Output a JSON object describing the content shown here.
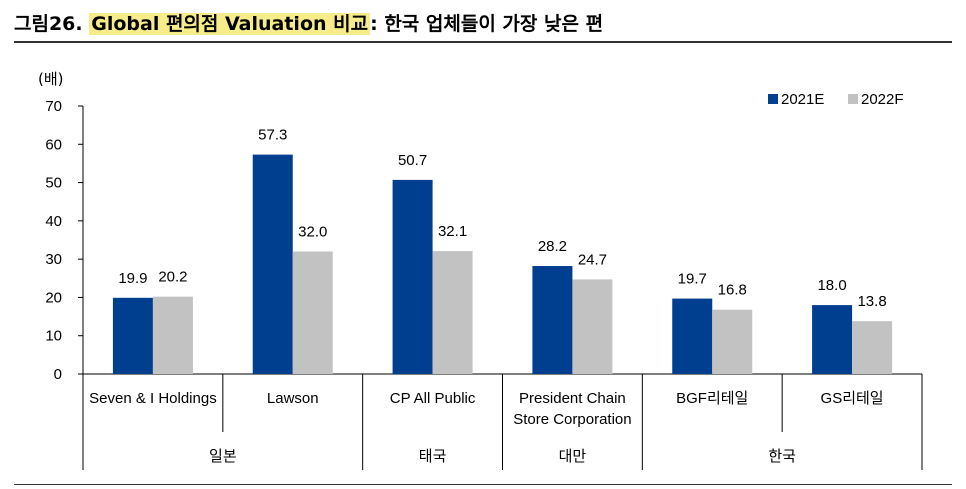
{
  "header": {
    "prefix": "그림26. ",
    "highlight": "Global 편의점 Valuation 비교",
    "suffix": ": 한국 업체들이 가장 낮은 편"
  },
  "chart_data": {
    "type": "bar",
    "unit_label": "(배)",
    "categories": [
      [
        "Seven & I Holdings"
      ],
      [
        "Lawson"
      ],
      [
        "CP All Public"
      ],
      [
        "President Chain",
        "Store Corporation"
      ],
      [
        "BGF리테일"
      ],
      [
        "GS리테일"
      ]
    ],
    "groups": [
      {
        "label": "일본",
        "start": 0,
        "end": 1
      },
      {
        "label": "태국",
        "start": 2,
        "end": 2
      },
      {
        "label": "대만",
        "start": 3,
        "end": 3
      },
      {
        "label": "한국",
        "start": 4,
        "end": 5
      }
    ],
    "series": [
      {
        "name": "2021E",
        "color": "#003f8f",
        "values": [
          19.9,
          57.3,
          50.7,
          28.2,
          19.7,
          18.0
        ]
      },
      {
        "name": "2022F",
        "color": "#c2c2c2",
        "values": [
          20.2,
          32.0,
          32.1,
          24.7,
          16.8,
          13.8
        ]
      }
    ],
    "ylim": [
      0,
      70
    ],
    "yticks": [
      0,
      10,
      20,
      30,
      40,
      50,
      60,
      70
    ],
    "legend_position": "top-right",
    "grid": false
  }
}
